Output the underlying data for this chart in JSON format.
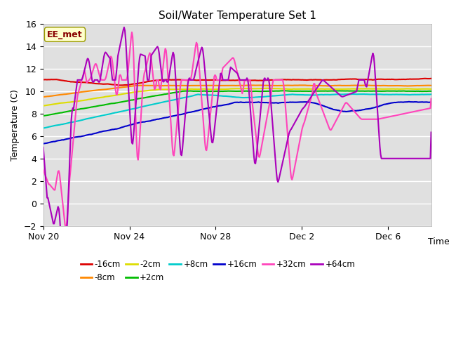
{
  "title": "Soil/Water Temperature Set 1",
  "xlabel": "Time",
  "ylabel": "Temperature (C)",
  "ylim": [
    -2,
    16
  ],
  "yticks": [
    -2,
    0,
    2,
    4,
    6,
    8,
    10,
    12,
    14,
    16
  ],
  "background_color": "#ffffff",
  "plot_bg_color": "#e0e0e0",
  "grid_color": "#ffffff",
  "annotation_label": "EE_met",
  "annotation_bg": "#ffffcc",
  "annotation_border": "#999900",
  "annotation_text_color": "#880000",
  "series": {
    "-16cm": {
      "color": "#dd0000",
      "linewidth": 1.5
    },
    "-8cm": {
      "color": "#ff8800",
      "linewidth": 1.5
    },
    "-2cm": {
      "color": "#dddd00",
      "linewidth": 1.5
    },
    "+2cm": {
      "color": "#00bb00",
      "linewidth": 1.5
    },
    "+8cm": {
      "color": "#00cccc",
      "linewidth": 1.5
    },
    "+16cm": {
      "color": "#0000cc",
      "linewidth": 1.5
    },
    "+32cm": {
      "color": "#ff44bb",
      "linewidth": 1.5
    },
    "+64cm": {
      "color": "#aa00bb",
      "linewidth": 1.5
    }
  },
  "xtick_labels": [
    "Nov 20",
    "Nov 24",
    "Nov 28",
    "Dec 2",
    "Dec 6"
  ],
  "xtick_positions": [
    0,
    4,
    8,
    12,
    16
  ]
}
